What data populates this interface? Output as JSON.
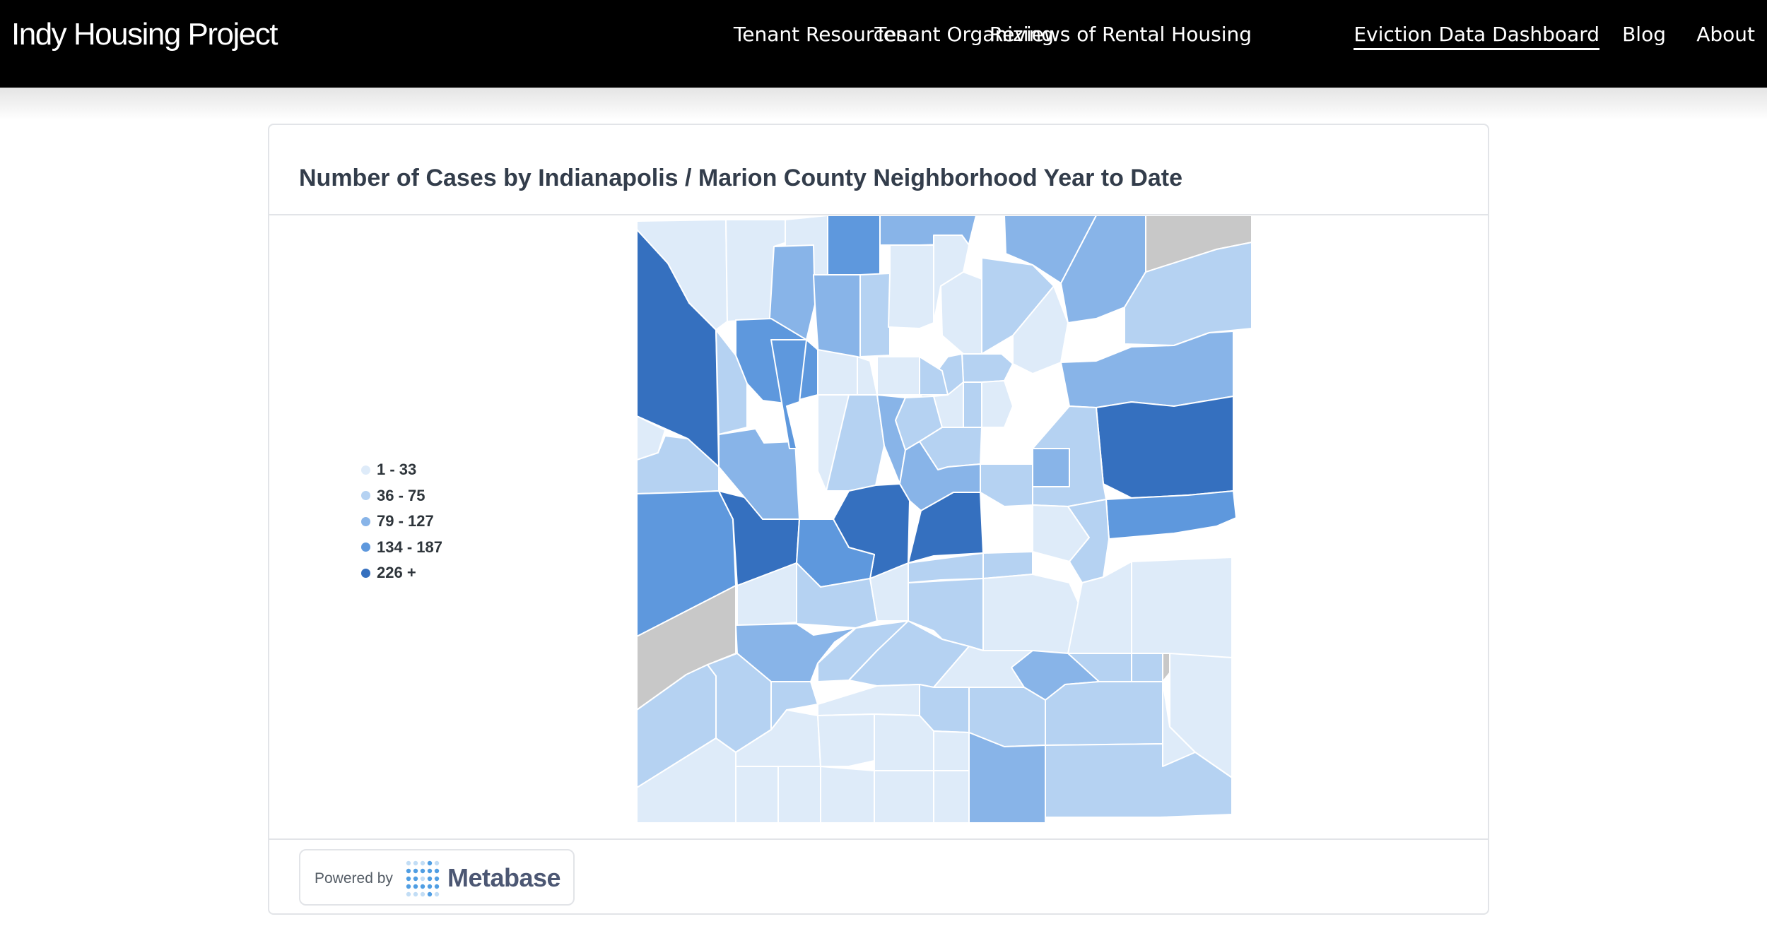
{
  "site": {
    "brand": "Indy Housing Project"
  },
  "nav": {
    "items": [
      {
        "label": "Tenant Resources",
        "active": false
      },
      {
        "label": "Tenant Organizing",
        "active": false
      },
      {
        "label": "Reviews of Rental Housing",
        "active": false
      },
      {
        "label": "Eviction Data Dashboard",
        "active": true
      },
      {
        "label": "Blog",
        "active": false
      },
      {
        "label": "About",
        "active": false
      }
    ]
  },
  "card": {
    "title": "Number of Cases by Indianapolis / Marion County Neighborhood Year to Date",
    "legend": [
      {
        "label": "1 - 33",
        "color": "#deebf9"
      },
      {
        "label": "36 - 75",
        "color": "#b5d2f2"
      },
      {
        "label": "79 - 127",
        "color": "#88b4e8"
      },
      {
        "label": "134 - 187",
        "color": "#5e98dd"
      },
      {
        "label": "226 +",
        "color": "#3570bf"
      }
    ],
    "no_data_color": "#c8c8c8",
    "map_icon": "neighborhood-choropleth-map",
    "footer": {
      "powered_by": "Powered by",
      "brand": "Metabase",
      "icon": "metabase-logo-icon"
    }
  }
}
